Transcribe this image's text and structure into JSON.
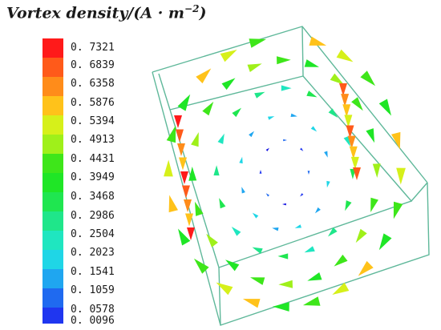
{
  "figure": {
    "title_main": "Vortex density/(",
    "title_unit_base": "A · m",
    "title_unit_exp": "−2",
    "title_close": ")"
  },
  "legend": {
    "labels": [
      "0. 7321",
      "0. 6839",
      "0. 6358",
      "0. 5876",
      "0. 5394",
      "0. 4913",
      "0. 4431",
      "0. 3949",
      "0. 3468",
      "0. 2986",
      "0. 2504",
      "0. 2023",
      "0. 1541",
      "0. 1059",
      "0. 0578",
      "0. 0096"
    ],
    "colors": [
      "#ff1a1a",
      "#ff5a1a",
      "#ff8c1a",
      "#ffc21a",
      "#d6f01a",
      "#9ff01a",
      "#3ee61a",
      "#1fe626",
      "#1fe650",
      "#1fe68a",
      "#1fe6c0",
      "#1fd6e6",
      "#1fa6f0",
      "#1f6af0",
      "#1f36f0",
      "#1010e0"
    ]
  }
}
